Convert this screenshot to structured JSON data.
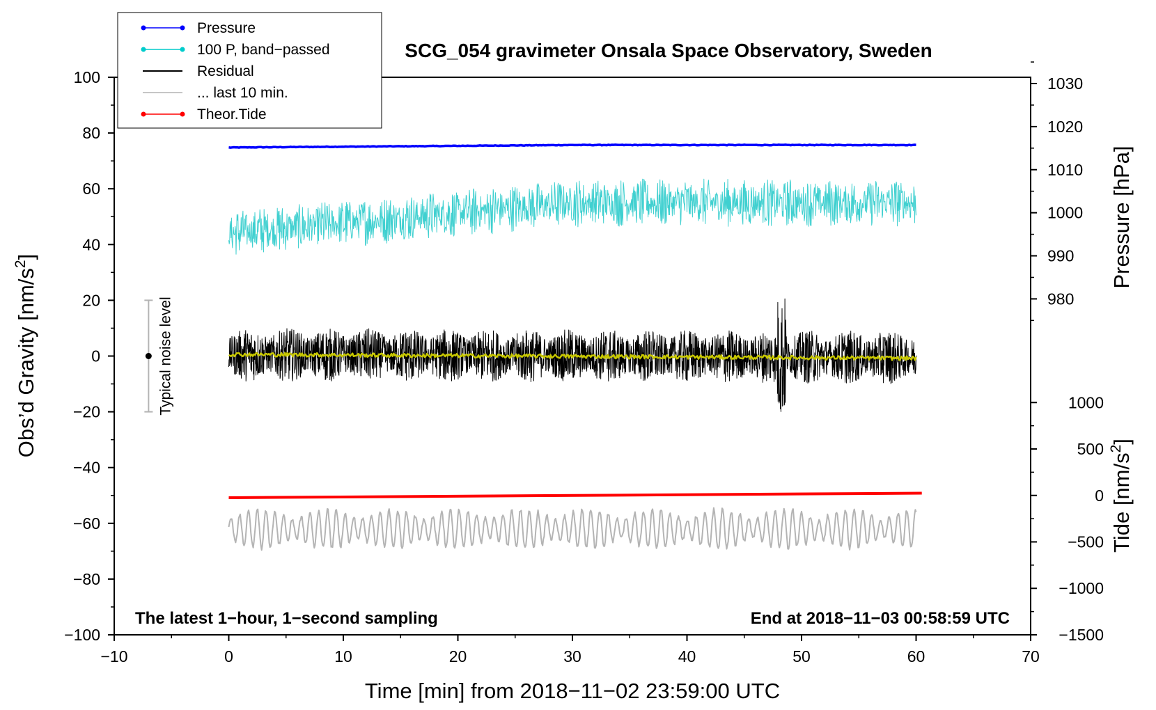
{
  "chart_data": {
    "type": "line",
    "title": "SCG_054 gravimeter Onsala Space Observatory, Sweden",
    "xlabel": "Time [min] from 2018−11−02 23:59:00 UTC",
    "ylabel_left": "Obs’d Gravity [nm/s",
    "ylabel_left_sup": "2",
    "ylabel_left_end": "]",
    "ylabel_right_pressure": "Pressure [hPa]",
    "ylabel_right_tide": "Tide [nm/s",
    "ylabel_right_tide_sup": "2",
    "ylabel_right_tide_end": "]",
    "xlim": [
      -10,
      70
    ],
    "ylim": [
      -100,
      100
    ],
    "x_ticks": [
      -10,
      0,
      10,
      20,
      30,
      40,
      50,
      60,
      70
    ],
    "x_tick_labels": [
      "−10",
      "0",
      "10",
      "20",
      "30",
      "40",
      "50",
      "60",
      "70"
    ],
    "y_ticks": [
      -100,
      -80,
      -60,
      -40,
      -20,
      0,
      20,
      40,
      60,
      80,
      100
    ],
    "y_tick_labels": [
      "−100",
      "−80",
      "−60",
      "−40",
      "−20",
      "0",
      "20",
      "40",
      "60",
      "80",
      "100"
    ],
    "pressure_axis": {
      "ticks": [
        980,
        990,
        1000,
        1010,
        1020,
        1030
      ],
      "tick_labels": [
        "980",
        "990",
        "1000",
        "1010",
        "1020",
        "1030"
      ],
      "y_at_980": 20.5,
      "y_per_hpa": 1.545
    },
    "tide_axis": {
      "ticks": [
        -1500,
        -1000,
        -500,
        0,
        500,
        1000
      ],
      "tick_labels": [
        "−1500",
        "−1000",
        "−500",
        "0",
        "500",
        "1000"
      ],
      "y_at_0": -50,
      "y_per_unit": 0.03333
    },
    "legend": [
      {
        "label": "Pressure",
        "color": "#0000ff",
        "marker": true
      },
      {
        "label": "100 P, band−passed",
        "color": "#00cccc",
        "marker": true
      },
      {
        "label": "Residual",
        "color": "#000000",
        "marker": false
      },
      {
        "label": "... last 10 min.",
        "color": "#b4b4b4",
        "marker": false
      },
      {
        "label": "Theor.Tide",
        "color": "#ff0000",
        "marker": true
      }
    ],
    "series": [
      {
        "name": "Pressure",
        "color": "#0000ff",
        "x_range": [
          0,
          60
        ],
        "y_start": 74.8,
        "y_end": 75.7,
        "noise_amp": 0.2
      },
      {
        "name": "100 P, band-passed",
        "color": "#40d0d0",
        "x_range": [
          0,
          60
        ],
        "y_start": 44,
        "y_end": 55,
        "noise_amp": 8
      },
      {
        "name": "Residual",
        "color": "#000000",
        "x_range": [
          0,
          60
        ],
        "y_start": 0.5,
        "y_end": -0.5,
        "noise_amp": 8
      },
      {
        "name": "Residual (smoothed)",
        "color": "#c8c800",
        "x_range": [
          0,
          60
        ],
        "y_start": 0.6,
        "y_end": -0.8,
        "noise_amp": 0.7
      },
      {
        "name": "... last 10 min.",
        "color": "#b4b4b4",
        "x_range": [
          0,
          60
        ],
        "y_center": -62,
        "noise_amp": 7
      },
      {
        "name": "Theor.Tide",
        "color": "#ff0000",
        "x_range": [
          0,
          60.5
        ],
        "y_start": -50.8,
        "y_end": -49.2,
        "noise_amp": 0
      }
    ],
    "noise_bar": {
      "x": -7,
      "y_low": -20,
      "y_high": 20,
      "center": 0,
      "label": "Typical noise level"
    },
    "annotation_left": "The latest 1−hour, 1−second sampling",
    "annotation_right": "End at 2018−11−03 00:58:59 UTC"
  }
}
